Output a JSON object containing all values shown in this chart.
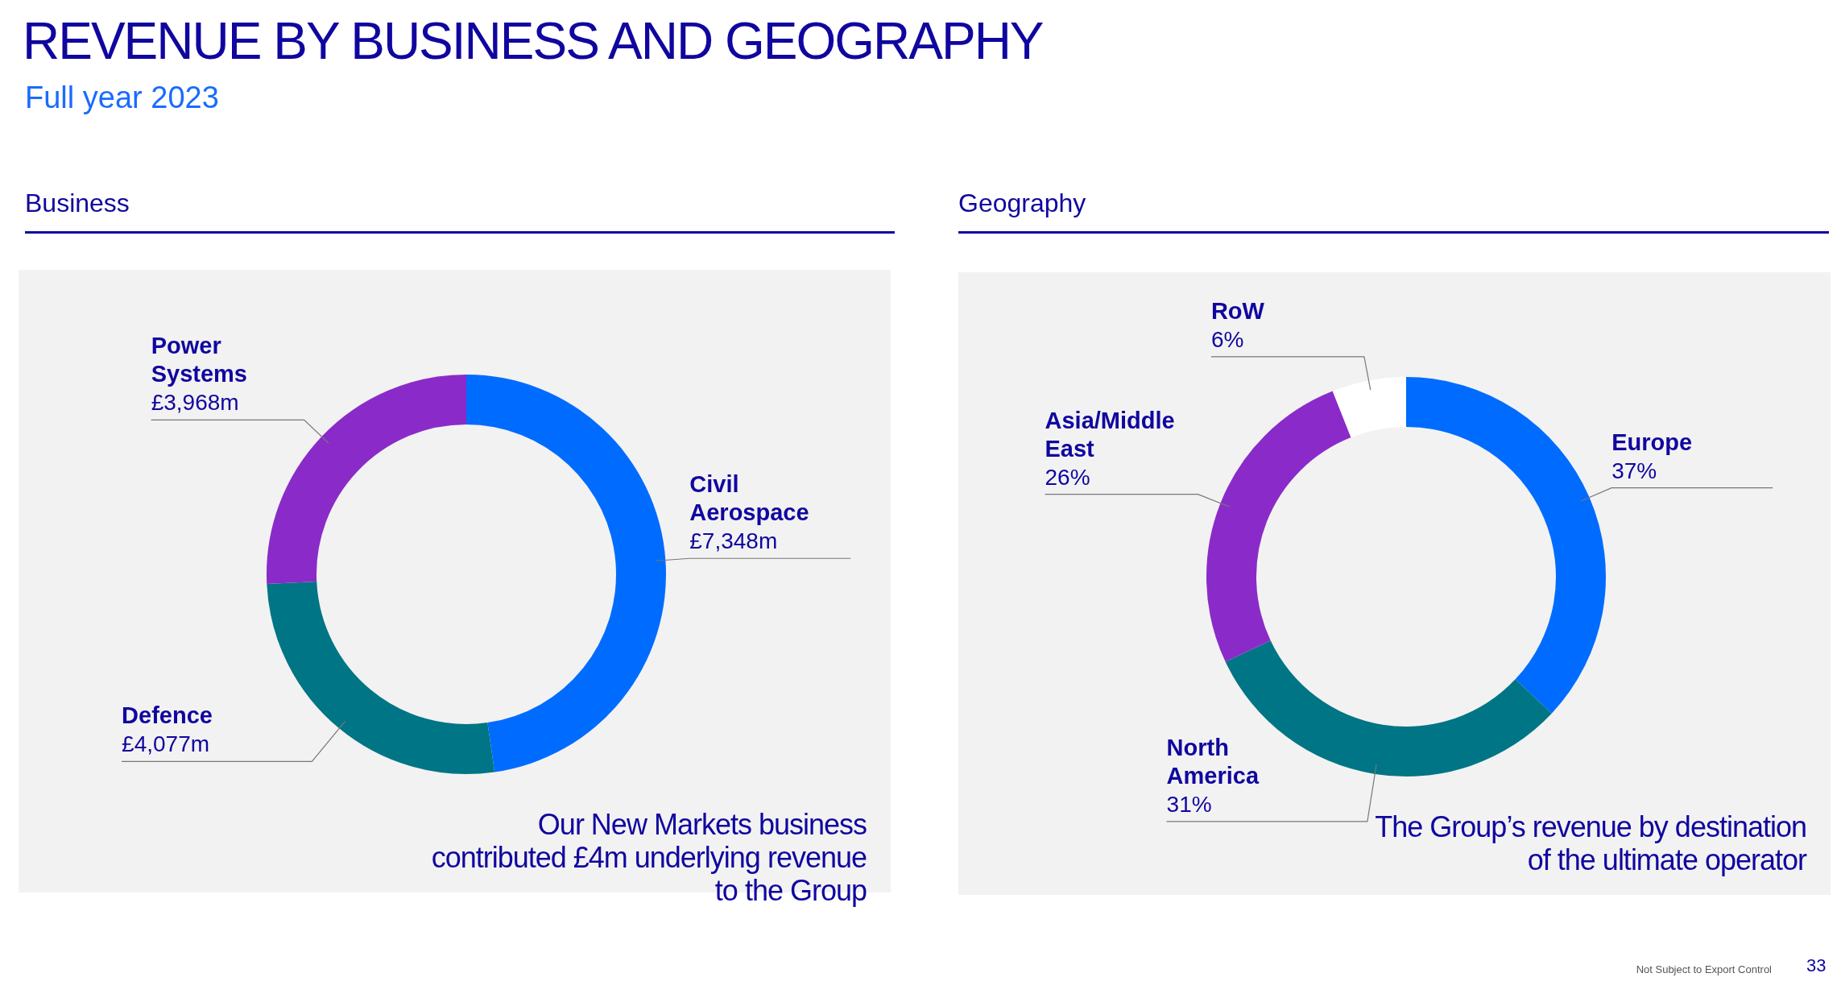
{
  "chart_data": [
    {
      "type": "donut",
      "title": "Business",
      "categories": [
        "Civil Aerospace",
        "Defence",
        "Power Systems"
      ],
      "values": [
        7348,
        4077,
        3968
      ],
      "colors": [
        "#006cff",
        "#007585",
        "#8a2bc9"
      ],
      "value_labels": [
        "£7,348m",
        "£4,077m",
        "£3,968m"
      ],
      "annotations": [
        "REVENUE BY BUSINESS AND GEOGRAPHY",
        "Full year 2023",
        "Our New Markets business contributed £4m underlying revenue to the Group"
      ]
    },
    {
      "type": "donut",
      "title": "Geography",
      "categories": [
        "Europe",
        "North America",
        "Asia/Middle East",
        "RoW"
      ],
      "values": [
        37,
        31,
        26,
        6
      ],
      "colors": [
        "#006cff",
        "#007585",
        "#8a2bc9",
        "#ffffff"
      ],
      "value_labels": [
        "37%",
        "31%",
        "26%",
        "6%"
      ],
      "annotations": [
        "The Group’s revenue by destination of the ultimate operator",
        "Not Subject to Export Control",
        "33"
      ]
    }
  ]
}
